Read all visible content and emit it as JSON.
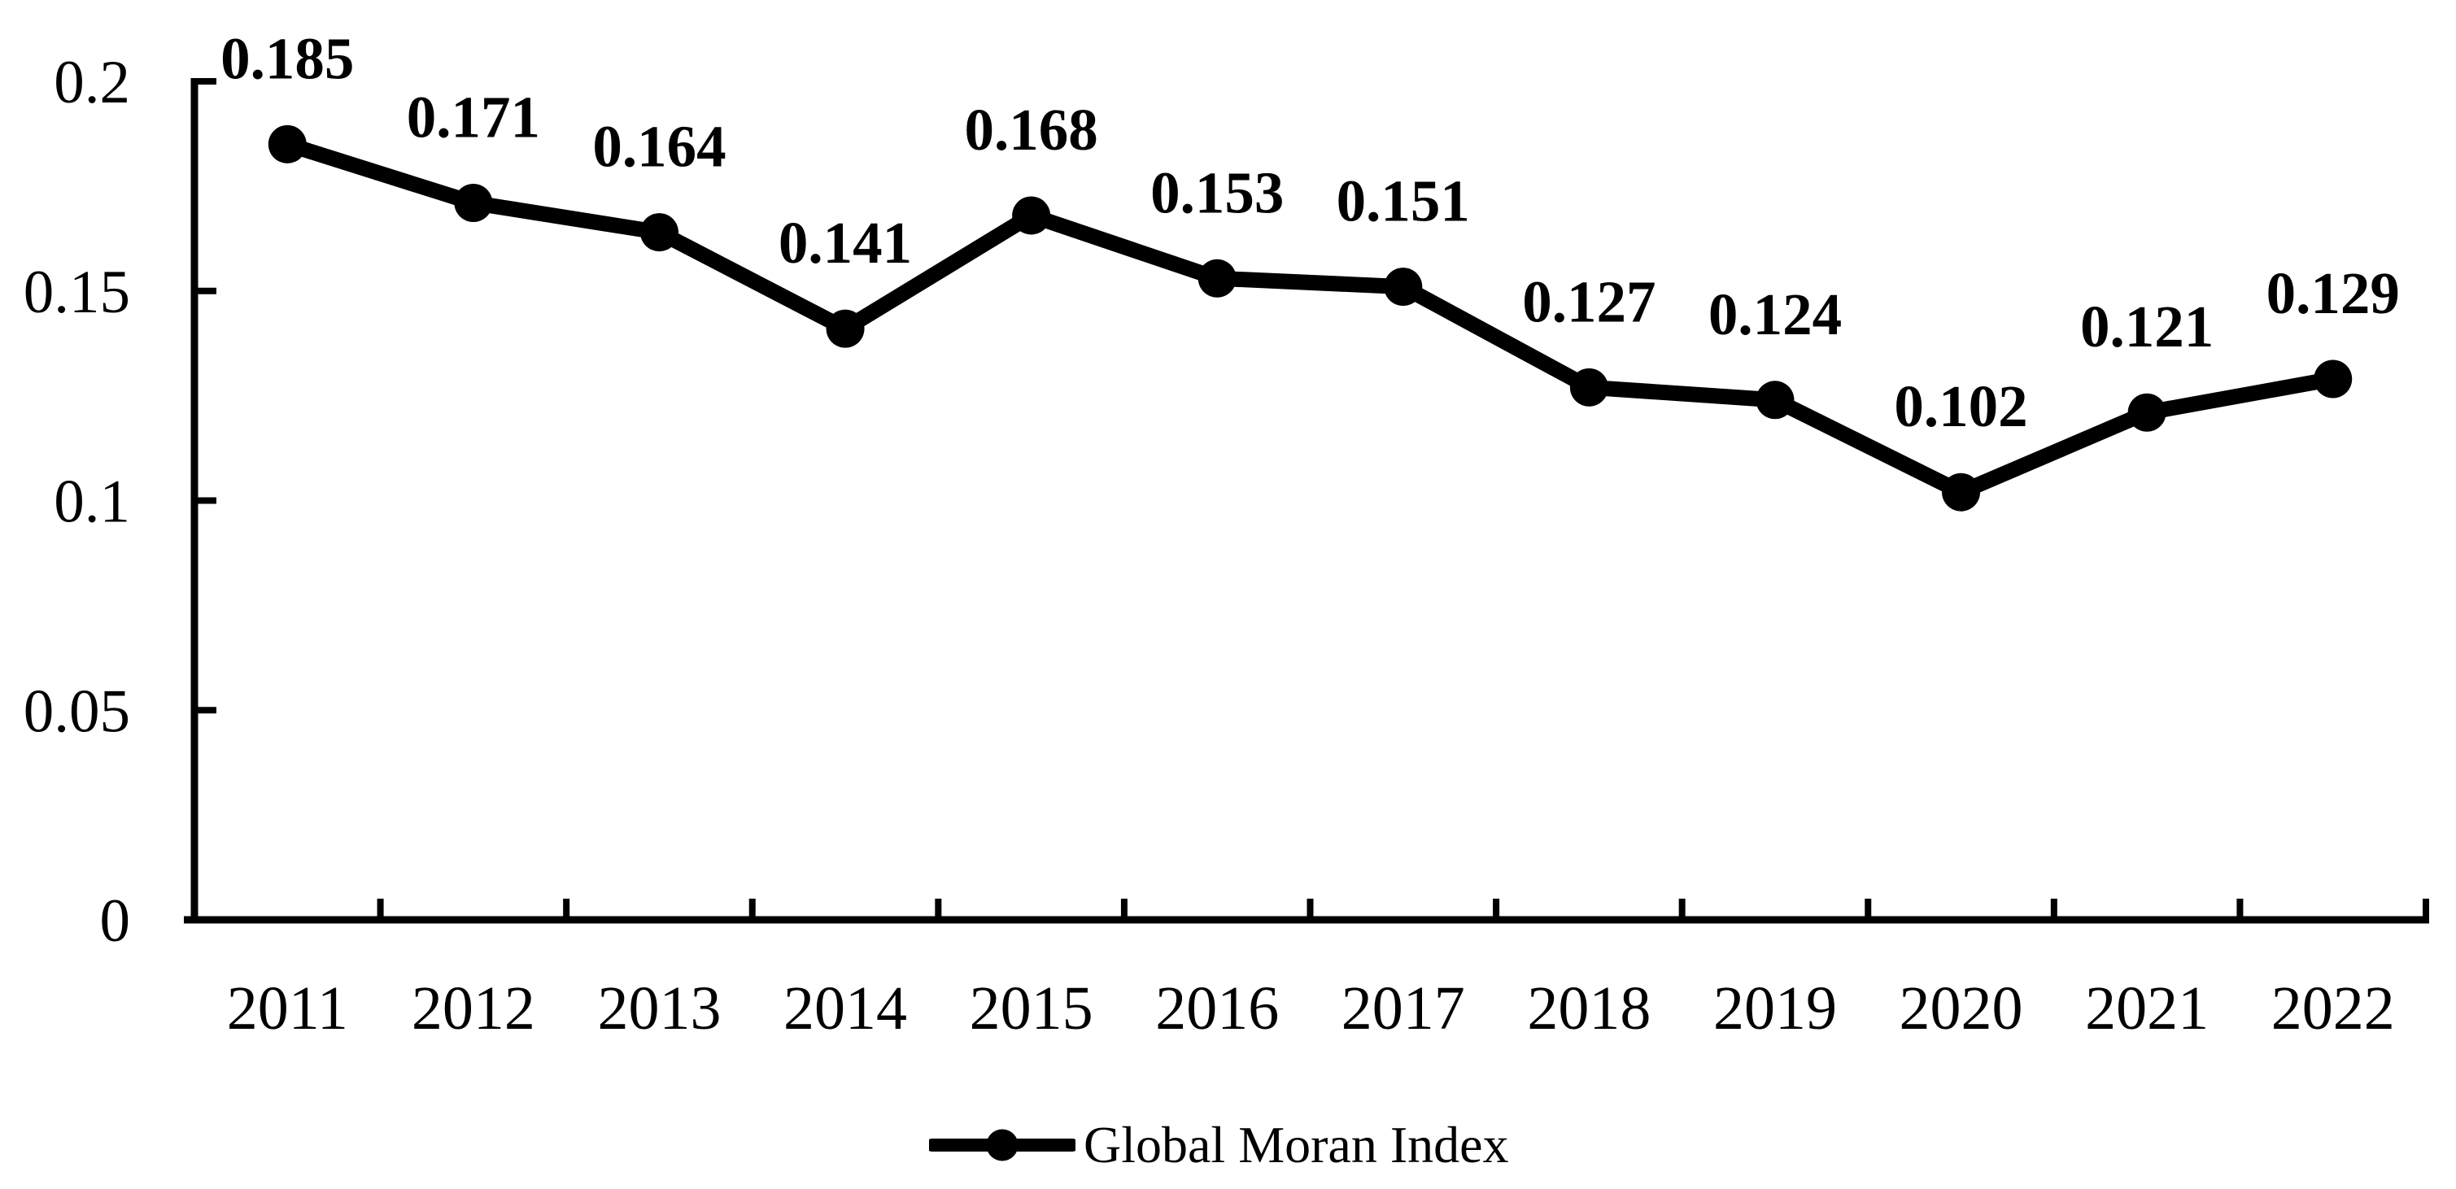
{
  "chart_data": {
    "type": "line",
    "title": "",
    "categories": [
      "2011",
      "2012",
      "2013",
      "2014",
      "2015",
      "2016",
      "2017",
      "2018",
      "2019",
      "2020",
      "2021",
      "2022"
    ],
    "series": [
      {
        "name": "Global Moran Index",
        "values": [
          0.185,
          0.171,
          0.164,
          0.141,
          0.168,
          0.153,
          0.151,
          0.127,
          0.124,
          0.102,
          0.121,
          0.129
        ]
      }
    ],
    "data_labels": [
      "0.185",
      "0.171",
      "0.164",
      "0.141",
      "0.168",
      "0.153",
      "0.151",
      "0.127",
      "0.124",
      "0.102",
      "0.121",
      "0.129"
    ],
    "xlabel": "",
    "ylabel": "",
    "y_tick_labels": [
      "0",
      "0.05",
      "0.1",
      "0.15",
      "0.2"
    ],
    "y_tick_values": [
      0,
      0.05,
      0.1,
      0.15,
      0.2
    ],
    "ylim": [
      0,
      0.2
    ],
    "grid": false,
    "legend": {
      "position": "bottom",
      "entries": [
        "Global Moran Index"
      ],
      "marker": "line-with-circle"
    },
    "colors": {
      "line": "#000000",
      "marker": "#000000",
      "text": "#000000",
      "axis": "#000000",
      "background": "#ffffff"
    }
  }
}
